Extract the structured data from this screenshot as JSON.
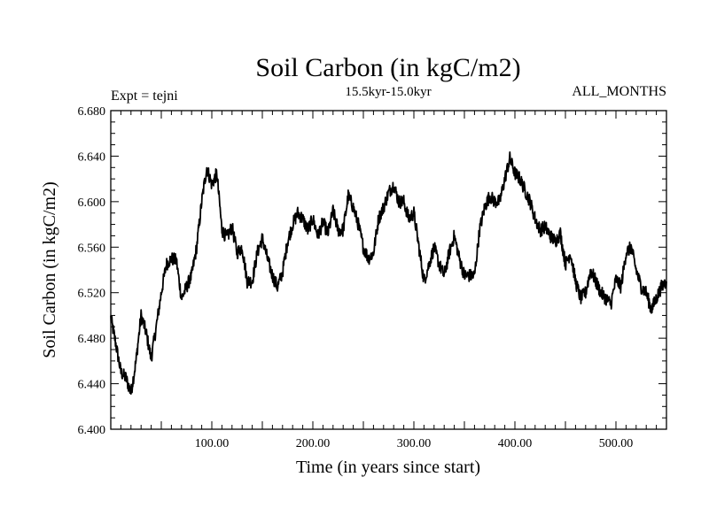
{
  "chart_data": {
    "type": "line",
    "title": "Soil Carbon (in kgC/m2)",
    "subtitle": "15.5kyr-15.0kyr",
    "left_note": "Expt = tejni",
    "right_note": "ALL_MONTHS",
    "xlabel": "Time (in years since start)",
    "ylabel": "Soil Carbon (in kgC/m2)",
    "xlim": [
      0,
      550
    ],
    "ylim": [
      6.4,
      6.68
    ],
    "x_ticks": [
      100,
      200,
      300,
      400,
      500
    ],
    "x_tick_labels": [
      "100.00",
      "200.00",
      "300.00",
      "400.00",
      "500.00"
    ],
    "y_ticks": [
      6.4,
      6.44,
      6.48,
      6.52,
      6.56,
      6.6,
      6.64,
      6.68
    ],
    "y_tick_labels": [
      "6.400",
      "6.440",
      "6.480",
      "6.520",
      "6.560",
      "6.600",
      "6.640",
      "6.680"
    ],
    "grid": false,
    "line_color": "#000000",
    "series": [
      {
        "name": "Soil Carbon",
        "x": [
          0,
          5,
          10,
          15,
          20,
          25,
          30,
          35,
          40,
          45,
          50,
          55,
          60,
          65,
          70,
          75,
          80,
          85,
          90,
          95,
          100,
          105,
          110,
          115,
          120,
          125,
          130,
          135,
          140,
          145,
          150,
          155,
          160,
          165,
          170,
          175,
          180,
          185,
          190,
          195,
          200,
          205,
          210,
          215,
          220,
          225,
          230,
          235,
          240,
          245,
          250,
          255,
          260,
          265,
          270,
          275,
          280,
          285,
          290,
          295,
          300,
          305,
          310,
          315,
          320,
          325,
          330,
          335,
          340,
          345,
          350,
          355,
          360,
          365,
          370,
          375,
          380,
          385,
          390,
          395,
          400,
          405,
          410,
          415,
          420,
          425,
          430,
          435,
          440,
          445,
          450,
          455,
          460,
          465,
          470,
          475,
          480,
          485,
          490,
          495,
          500,
          505,
          510,
          515,
          520,
          525,
          530,
          535,
          540,
          545,
          550
        ],
        "values": [
          6.498,
          6.475,
          6.45,
          6.445,
          6.432,
          6.46,
          6.5,
          6.485,
          6.462,
          6.49,
          6.52,
          6.545,
          6.55,
          6.548,
          6.515,
          6.525,
          6.535,
          6.56,
          6.6,
          6.63,
          6.615,
          6.625,
          6.575,
          6.568,
          6.578,
          6.555,
          6.56,
          6.53,
          6.53,
          6.555,
          6.568,
          6.55,
          6.535,
          6.525,
          6.538,
          6.565,
          6.58,
          6.59,
          6.585,
          6.575,
          6.585,
          6.57,
          6.582,
          6.572,
          6.592,
          6.575,
          6.575,
          6.605,
          6.595,
          6.58,
          6.56,
          6.55,
          6.555,
          6.585,
          6.595,
          6.608,
          6.615,
          6.6,
          6.6,
          6.585,
          6.59,
          6.56,
          6.53,
          6.545,
          6.56,
          6.545,
          6.535,
          6.555,
          6.57,
          6.55,
          6.535,
          6.535,
          6.535,
          6.575,
          6.595,
          6.605,
          6.6,
          6.6,
          6.62,
          6.638,
          6.625,
          6.62,
          6.61,
          6.6,
          6.585,
          6.575,
          6.578,
          6.57,
          6.565,
          6.572,
          6.545,
          6.555,
          6.53,
          6.515,
          6.52,
          6.54,
          6.53,
          6.52,
          6.515,
          6.51,
          6.532,
          6.525,
          6.555,
          6.56,
          6.54,
          6.525,
          6.52,
          6.505,
          6.515,
          6.525,
          6.53
        ]
      }
    ]
  }
}
